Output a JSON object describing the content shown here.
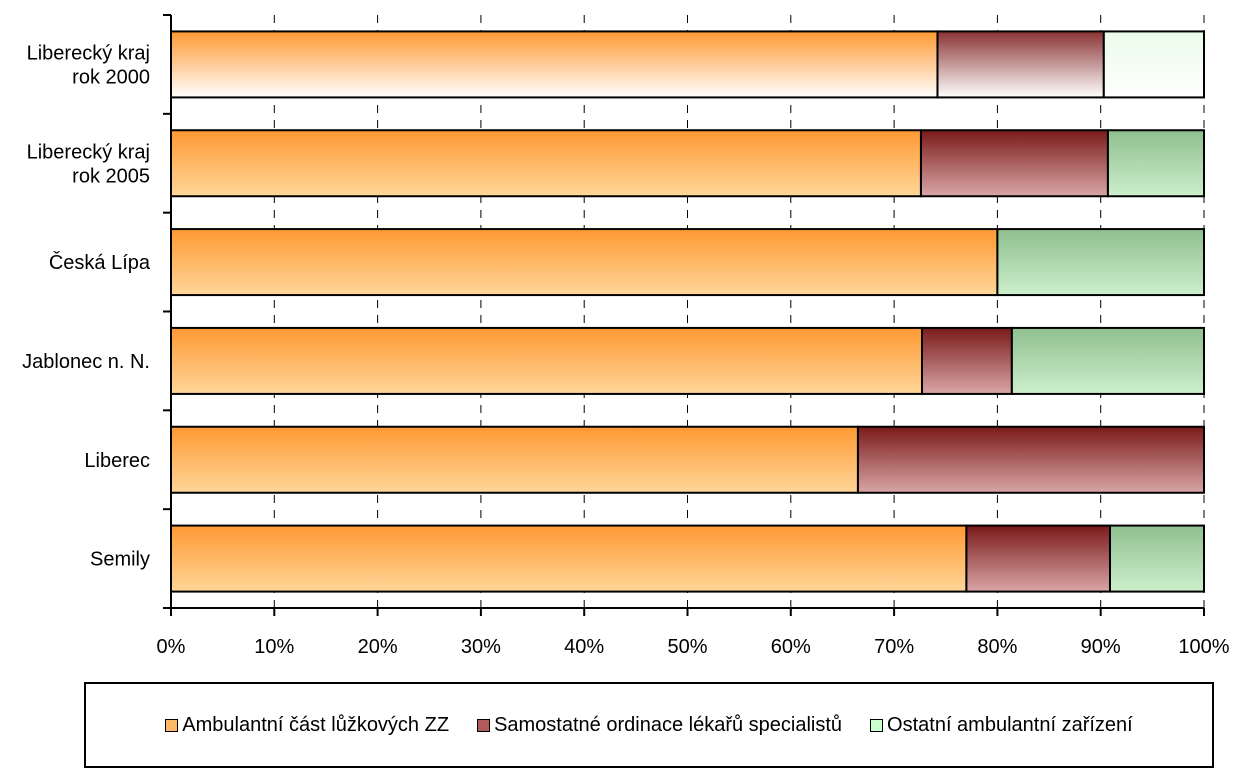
{
  "chart_data": {
    "type": "bar",
    "orientation": "horizontal",
    "stacked": "percent",
    "categories": [
      "Liberecký kraj rok 2000",
      "Liberecký kraj rok 2005",
      "Česká Lípa",
      "Jablonec n. N.",
      "Liberec",
      "Semily"
    ],
    "category_lines": [
      [
        "Liberecký kraj",
        "rok 2000"
      ],
      [
        "Liberecký kraj",
        "rok 2005"
      ],
      [
        "Česká Lípa"
      ],
      [
        "Jablonec n. N."
      ],
      [
        "Liberec"
      ],
      [
        "Semily"
      ]
    ],
    "series": [
      {
        "name": "Ambulantní část lůžkových ZZ",
        "values": [
          74.2,
          72.6,
          80.0,
          72.7,
          66.5,
          77.0
        ],
        "color": "#ff9933"
      },
      {
        "name": "Samostatné ordinace lékařů specialistů",
        "values": [
          16.1,
          18.1,
          0.0,
          8.7,
          33.5,
          13.9
        ],
        "color": "#993333"
      },
      {
        "name": "Ostatní ambulantní zařízení",
        "values": [
          9.7,
          9.3,
          20.0,
          18.6,
          0.0,
          9.1
        ],
        "color": "#ccffcc"
      }
    ],
    "x_ticks": [
      "0%",
      "10%",
      "20%",
      "30%",
      "40%",
      "50%",
      "60%",
      "70%",
      "80%",
      "90%",
      "100%"
    ],
    "xlim": [
      0,
      100
    ],
    "grid": "vertical dashed",
    "legend_position": "bottom"
  }
}
